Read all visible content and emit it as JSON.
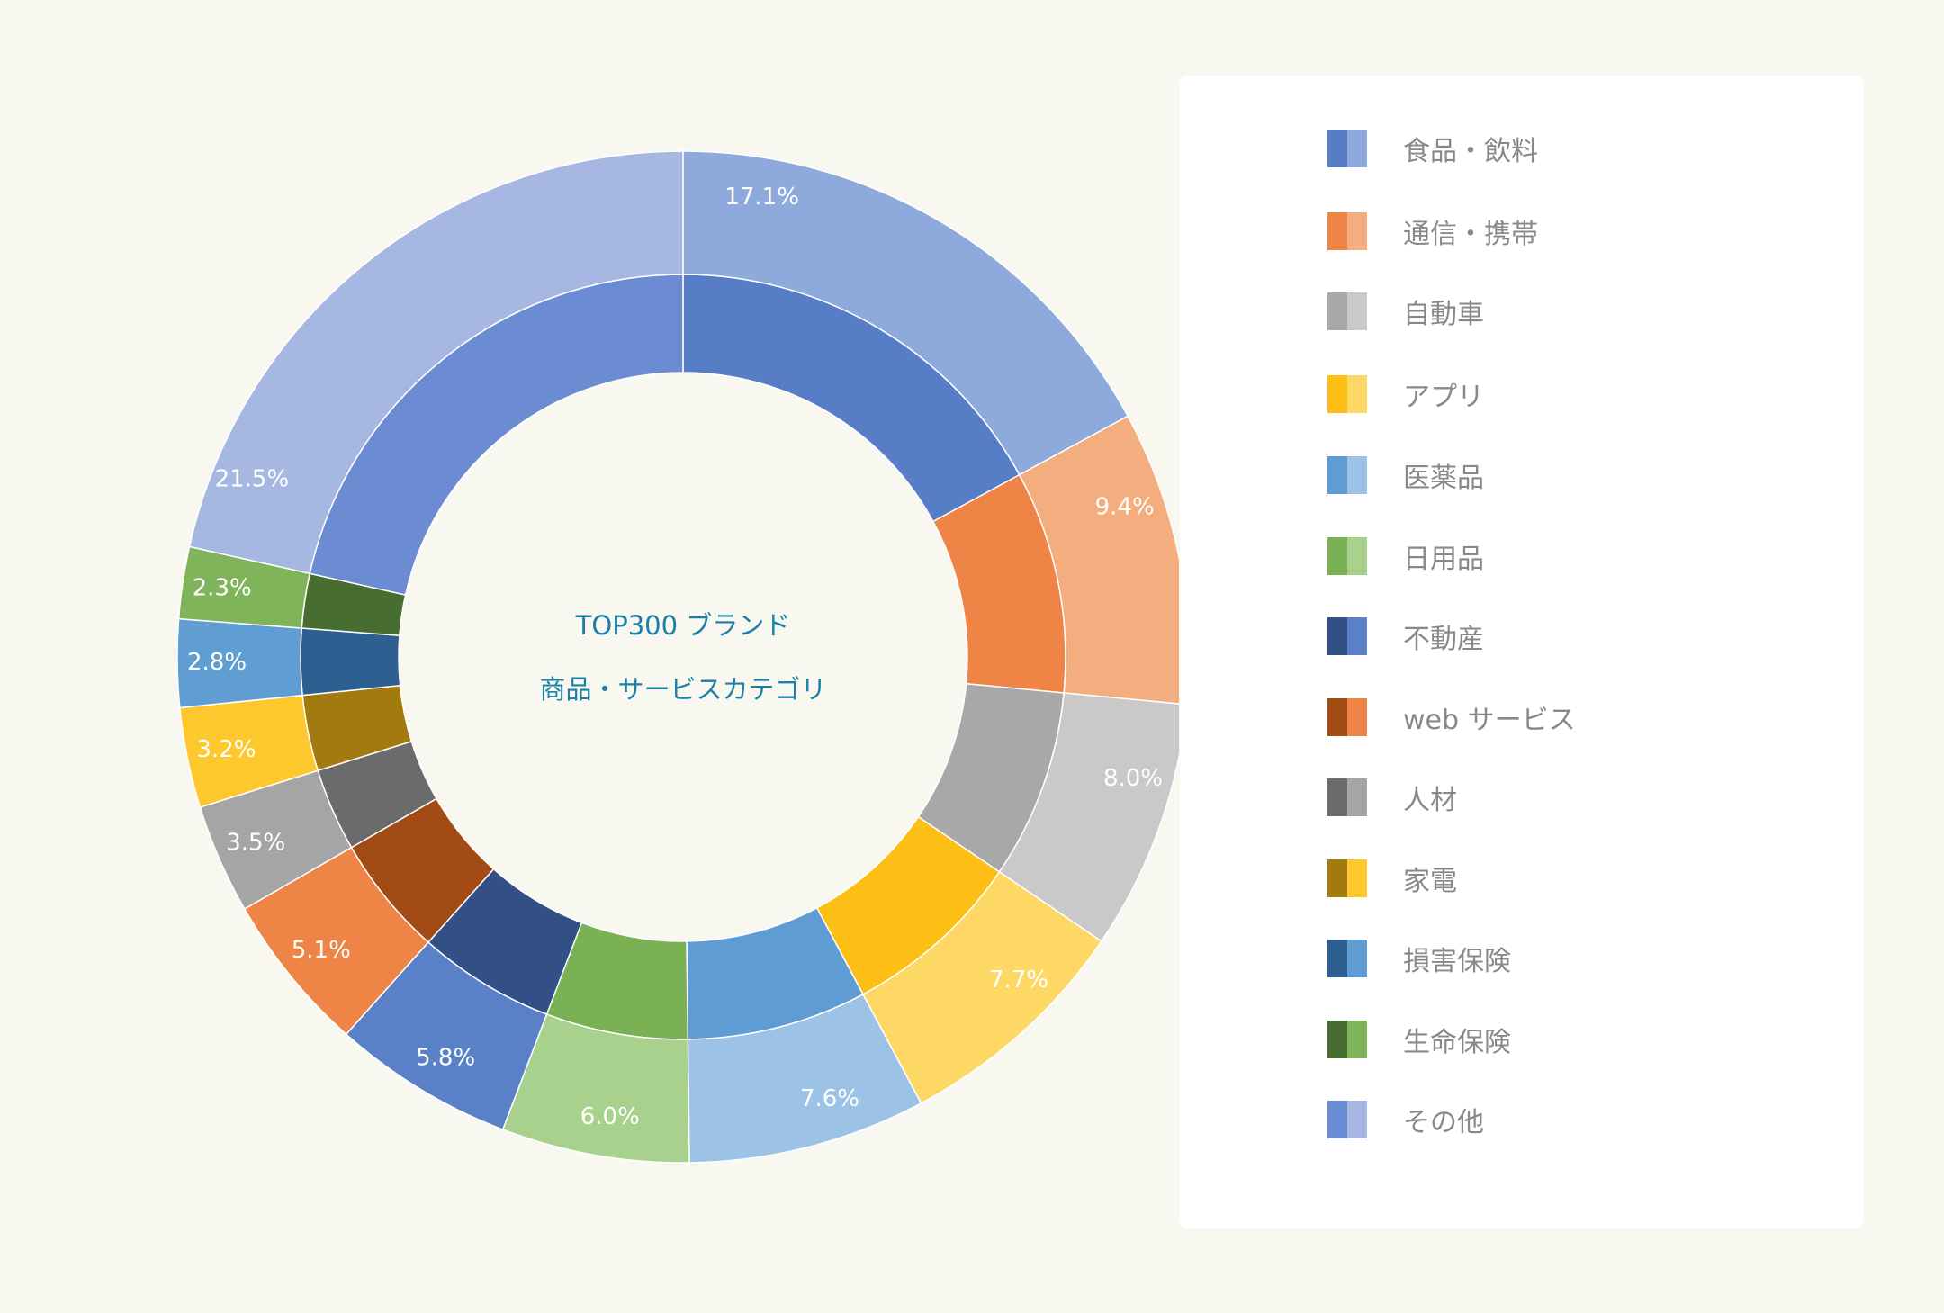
{
  "center": {
    "line1": "TOP300 ブランド",
    "line2": "商品・サービスカテゴリ"
  },
  "chart_data": {
    "type": "pie",
    "subtype": "double-ring donut",
    "categories": [
      "食品・飲料",
      "通信・携帯",
      "自動車",
      "アプリ",
      "医薬品",
      "日用品",
      "不動産",
      "web サービス",
      "人材",
      "家電",
      "損害保険",
      "生命保険",
      "その他"
    ],
    "values": [
      17.1,
      9.4,
      8.0,
      7.7,
      7.6,
      6.0,
      5.8,
      5.1,
      3.5,
      3.2,
      2.8,
      2.3,
      21.5
    ],
    "value_labels": [
      "17.1%",
      "9.4%",
      "8.0%",
      "7.7%",
      "7.6%",
      "6.0%",
      "5.8%",
      "5.1%",
      "3.5%",
      "3.2%",
      "2.8%",
      "2.3%",
      "21.5%"
    ],
    "inner_colors": [
      "#577dc7",
      "#ee8547",
      "#a8a8a8",
      "#fdbf15",
      "#5f9cd4",
      "#79b154",
      "#324f86",
      "#a24b15",
      "#6b6b6b",
      "#a27a0f",
      "#2d5f91",
      "#476d30",
      "#6b8bd2"
    ],
    "outer_colors": [
      "#8eaadd",
      "#f3ad7e",
      "#c9c9c9",
      "#fed864",
      "#9cc2e6",
      "#a8d18d",
      "#5a80c7",
      "#ee8547",
      "#a5a5a5",
      "#fcc82e",
      "#609dd3",
      "#80b45a",
      "#a6b8e2"
    ],
    "legend_placement": "right"
  },
  "legend": [
    {
      "label": "食品・飲料",
      "c1": "#577dc7",
      "c2": "#8eaadd"
    },
    {
      "label": "通信・携帯",
      "c1": "#ee8547",
      "c2": "#f3ad7e"
    },
    {
      "label": "自動車",
      "c1": "#a8a8a8",
      "c2": "#c9c9c9"
    },
    {
      "label": "アプリ",
      "c1": "#fdbf15",
      "c2": "#fed864"
    },
    {
      "label": "医薬品",
      "c1": "#5f9cd4",
      "c2": "#9cc2e6"
    },
    {
      "label": "日用品",
      "c1": "#79b154",
      "c2": "#a8d18d"
    },
    {
      "label": "不動産",
      "c1": "#324f86",
      "c2": "#5a80c7"
    },
    {
      "label": "web サービス",
      "c1": "#a24b15",
      "c2": "#ee8547"
    },
    {
      "label": "人材",
      "c1": "#6b6b6b",
      "c2": "#a5a5a5"
    },
    {
      "label": "家電",
      "c1": "#a27a0f",
      "c2": "#fcc82e"
    },
    {
      "label": "損害保険",
      "c1": "#2d5f91",
      "c2": "#609dd3"
    },
    {
      "label": "生命保険",
      "c1": "#476d30",
      "c2": "#80b45a"
    },
    {
      "label": "その他",
      "c1": "#6b8bd2",
      "c2": "#a6b8e2"
    }
  ]
}
